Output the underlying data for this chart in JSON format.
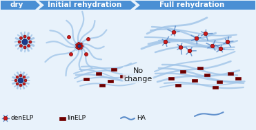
{
  "bg_color": "#e8f2fb",
  "arrow_color": "#4a8fd4",
  "arrow_text_color": "white",
  "arrow_labels": [
    "dry",
    "Initial rehydration",
    "Full rehydration"
  ],
  "ha_color": "#a0c4e8",
  "ha_color_dark": "#4a80c4",
  "den_core_color": "#1a3a8a",
  "linELP_color": "#6b0000",
  "node_color_fill": "#cc1a1a",
  "node_color_edge": "#7a0000",
  "no_change_text": "No\nchange",
  "legend_denELP": "denELP",
  "legend_linELP": "linELP",
  "legend_HA": "HA"
}
